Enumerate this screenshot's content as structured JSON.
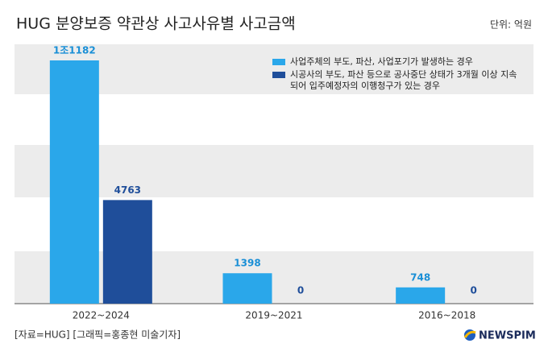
{
  "chart_data": {
    "type": "bar",
    "title": "HUG 분양보증 약관상 사고사유별 사고금액",
    "unit": "단위: 억원",
    "source": "[자료=HUG] [그래픽=홍종현 미술기자]",
    "logo": "NEWSPIM",
    "categories": [
      "2022~2024",
      "2019~2021",
      "2016~2018"
    ],
    "series": [
      {
        "name": "사업주체의 부도, 파산, 사업포기가 발생하는 경우",
        "color": "#2aa7ea",
        "values": [
          11182,
          1398,
          748
        ],
        "value_labels": [
          "1조1182",
          "1398",
          "748"
        ]
      },
      {
        "name": "시공사의 부도, 파산 등으로 공사중단 상태가 3개월 이상 지속되어 입주예정자의 이행청구가 있는 경우",
        "color": "#1f4e9a",
        "values": [
          4763,
          0,
          0
        ],
        "value_labels": [
          "4763",
          "0",
          "0"
        ]
      }
    ]
  }
}
